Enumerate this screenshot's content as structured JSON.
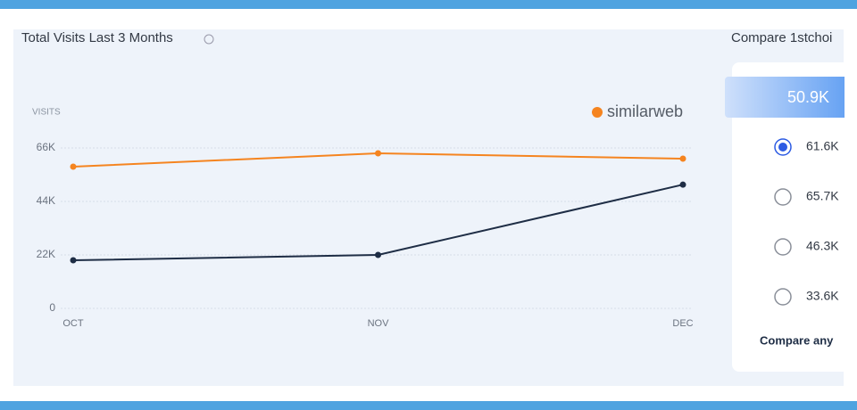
{
  "chart_data": {
    "type": "line",
    "title": "Total Visits Last 3 Months",
    "y_label": "VISITS",
    "watermark": "similarweb",
    "categories": [
      "OCT",
      "NOV",
      "DEC"
    ],
    "series": [
      {
        "color": "#f5841f",
        "values": [
          58300,
          63800,
          61600
        ]
      },
      {
        "color": "#1e2d45",
        "values": [
          19800,
          22000,
          50900
        ]
      }
    ],
    "ylim": [
      0,
      66000
    ],
    "yticks": [
      0,
      {
        "value": 22000,
        "label": "22K"
      },
      {
        "value": 44000,
        "label": "44K"
      },
      {
        "value": 66000,
        "label": "66K"
      }
    ],
    "grid": true
  },
  "compare_panel": {
    "title": "Compare 1stchoi",
    "selected": "50.9K",
    "options": [
      "61.6K",
      "65.7K",
      "46.3K",
      "33.6K"
    ],
    "link": "Compare any"
  }
}
